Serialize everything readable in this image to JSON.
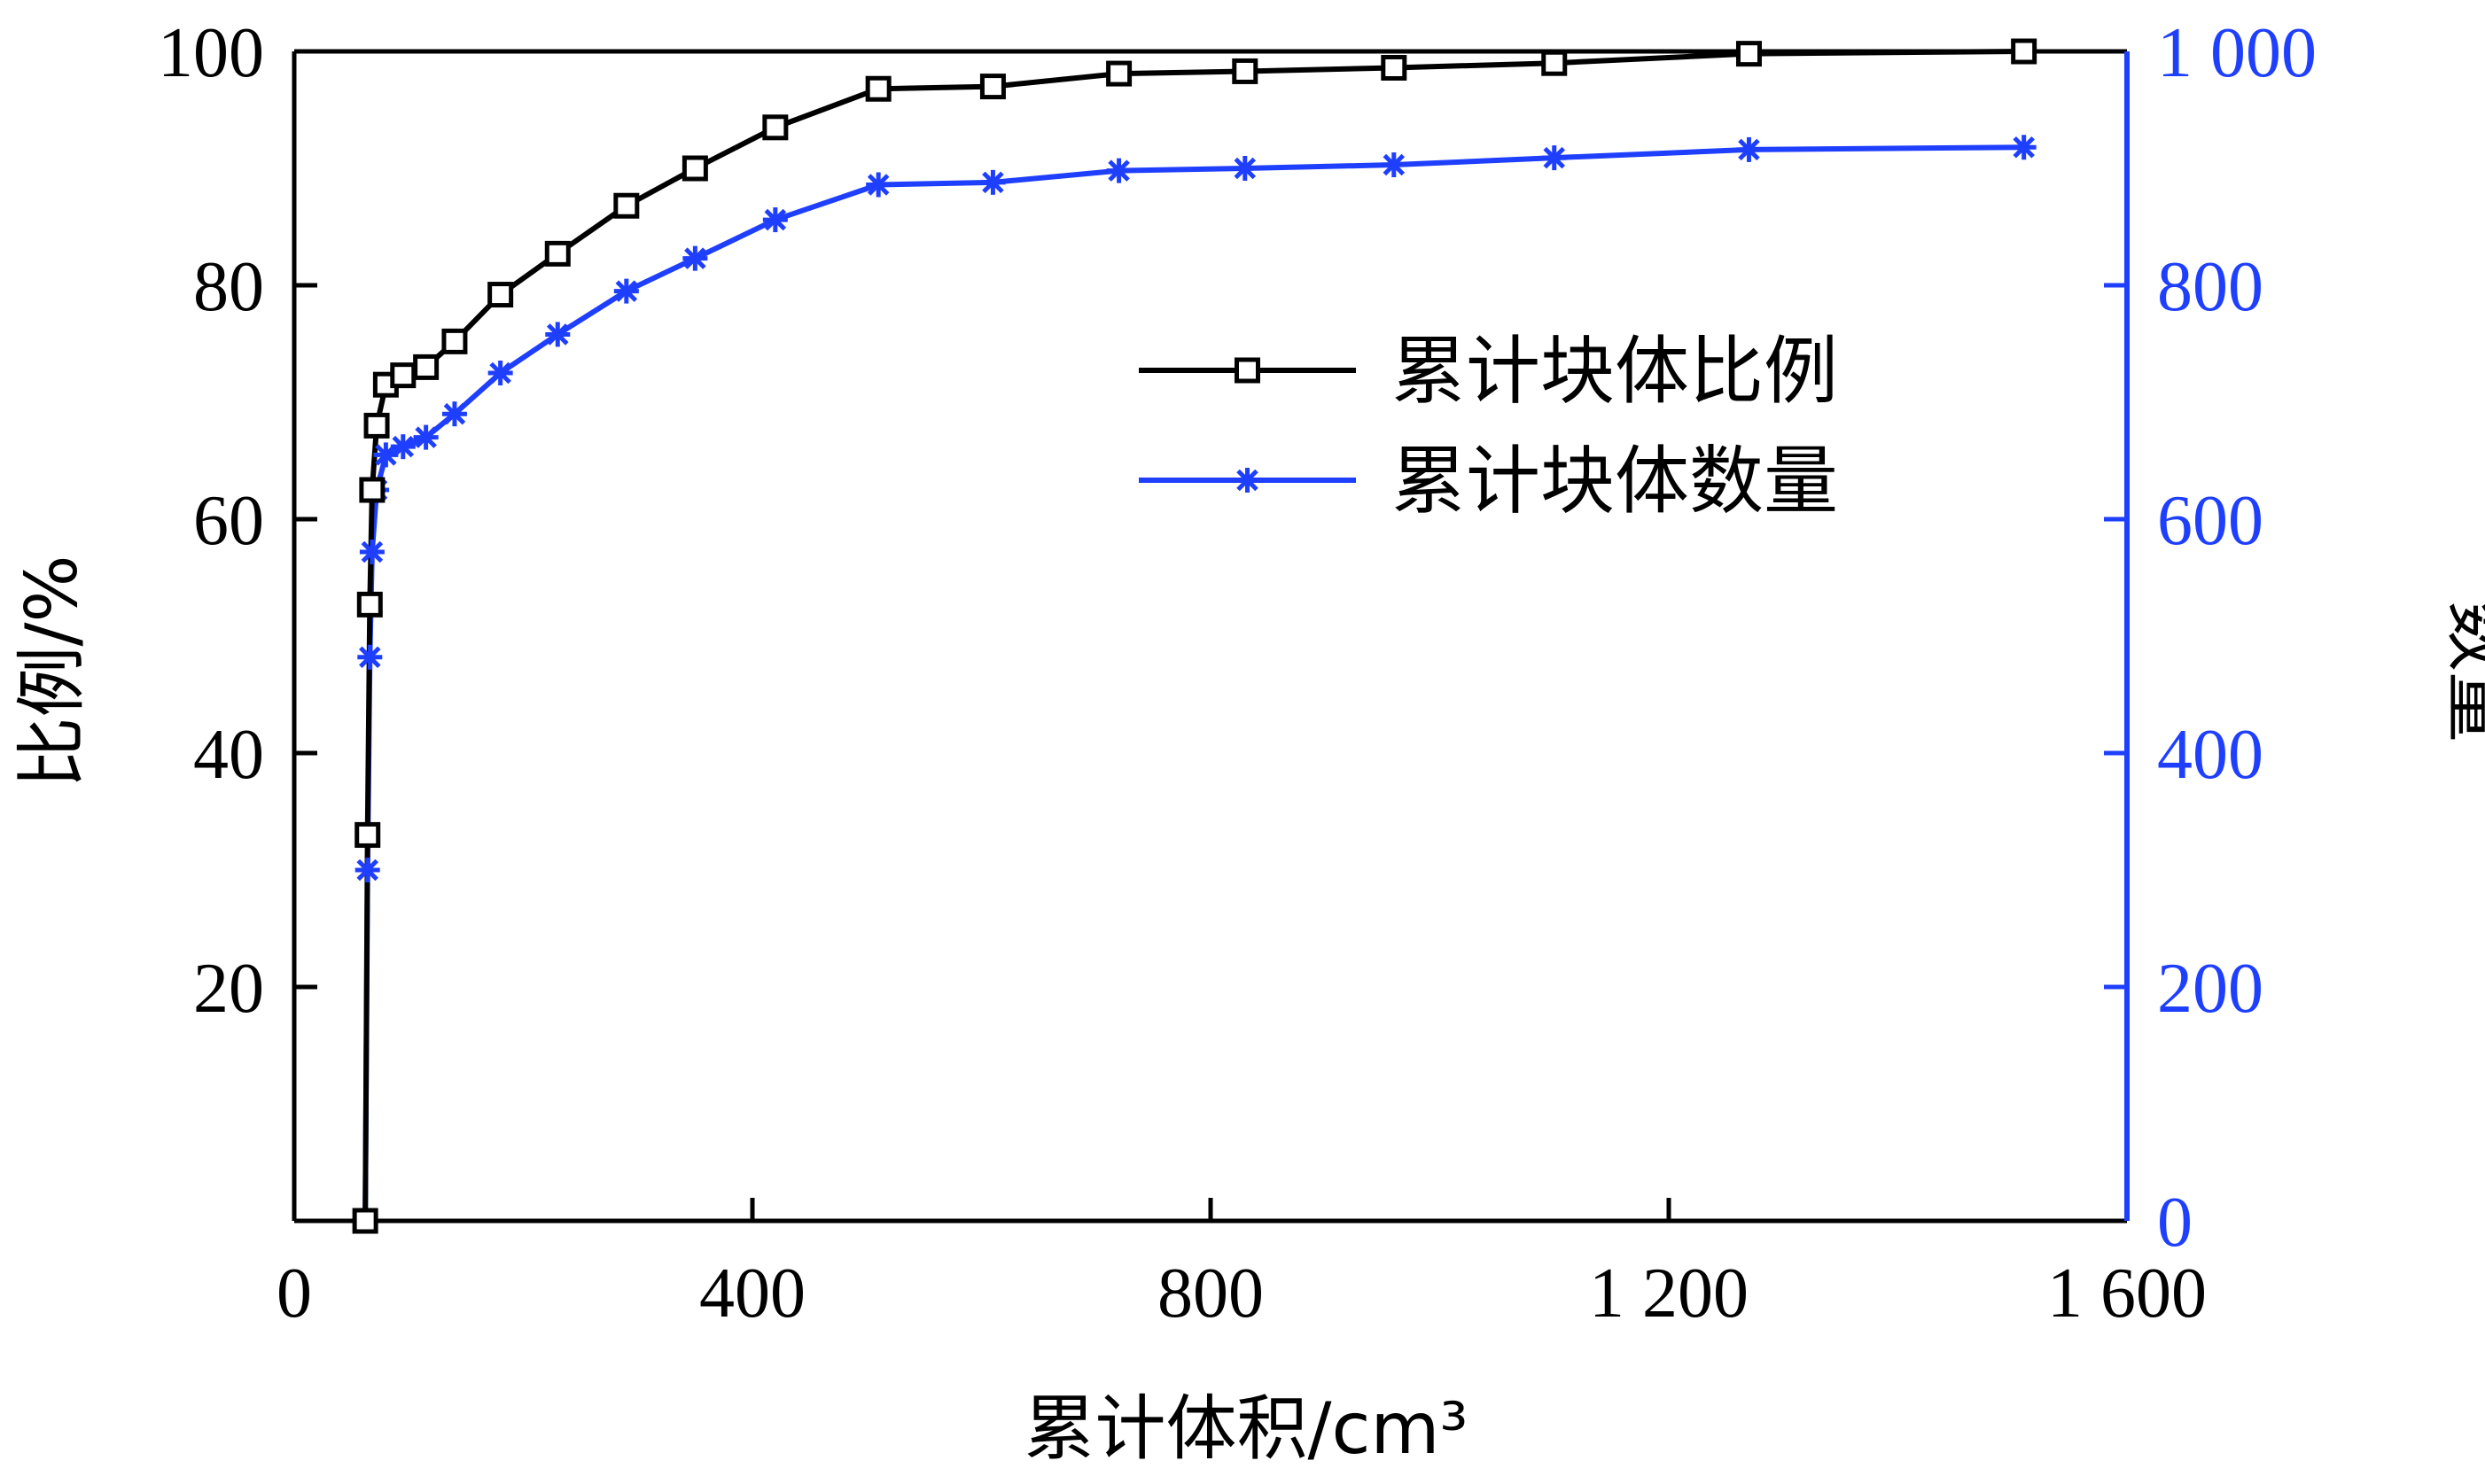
{
  "chart_data": {
    "type": "line",
    "x": [
      62,
      64,
      66,
      68,
      72,
      80,
      95,
      115,
      140,
      180,
      230,
      290,
      350,
      420,
      510,
      610,
      720,
      830,
      960,
      1100,
      1270,
      1510
    ],
    "xlabel": "累计体积/cm³",
    "ylabel": "比例/%",
    "y2label": "数量",
    "xlim": [
      0,
      1600
    ],
    "ylim": [
      0,
      100
    ],
    "y2lim": [
      0,
      1000
    ],
    "xticks": [
      {
        "value": 0,
        "label": "0"
      },
      {
        "value": 400,
        "label": "400"
      },
      {
        "value": 800,
        "label": "800"
      },
      {
        "value": 1200,
        "label": "1 200"
      },
      {
        "value": 1600,
        "label": "1 600"
      }
    ],
    "yticks": [
      {
        "value": 20,
        "label": "20"
      },
      {
        "value": 40,
        "label": "40"
      },
      {
        "value": 60,
        "label": "60"
      },
      {
        "value": 80,
        "label": "80"
      },
      {
        "value": 100,
        "label": "100"
      }
    ],
    "y2ticks": [
      {
        "value": 0,
        "label": "0"
      },
      {
        "value": 200,
        "label": "200"
      },
      {
        "value": 400,
        "label": "400"
      },
      {
        "value": 600,
        "label": "600"
      },
      {
        "value": 800,
        "label": "800"
      },
      {
        "value": 1000,
        "label": "1 000"
      }
    ],
    "series": [
      {
        "name": "累计块体比例",
        "axis": "left",
        "color": "#000000",
        "marker": "square",
        "values": [
          0,
          33,
          52.7,
          62.5,
          68,
          71.5,
          72.3,
          73,
          75.2,
          79.2,
          82.7,
          86.8,
          90,
          93.5,
          96.8,
          97,
          98.1,
          98.3,
          98.6,
          99,
          99.8,
          100
        ]
      },
      {
        "name": "累计块体数量",
        "axis": "right",
        "color": "#1f3fff",
        "marker": "asterisk",
        "values": [
          0,
          300,
          482,
          572,
          625,
          655,
          662,
          670,
          690,
          725,
          758,
          795,
          823,
          856,
          886,
          888,
          898,
          900,
          903,
          909,
          916,
          918
        ]
      }
    ],
    "legend": "top-right",
    "grid": false
  }
}
